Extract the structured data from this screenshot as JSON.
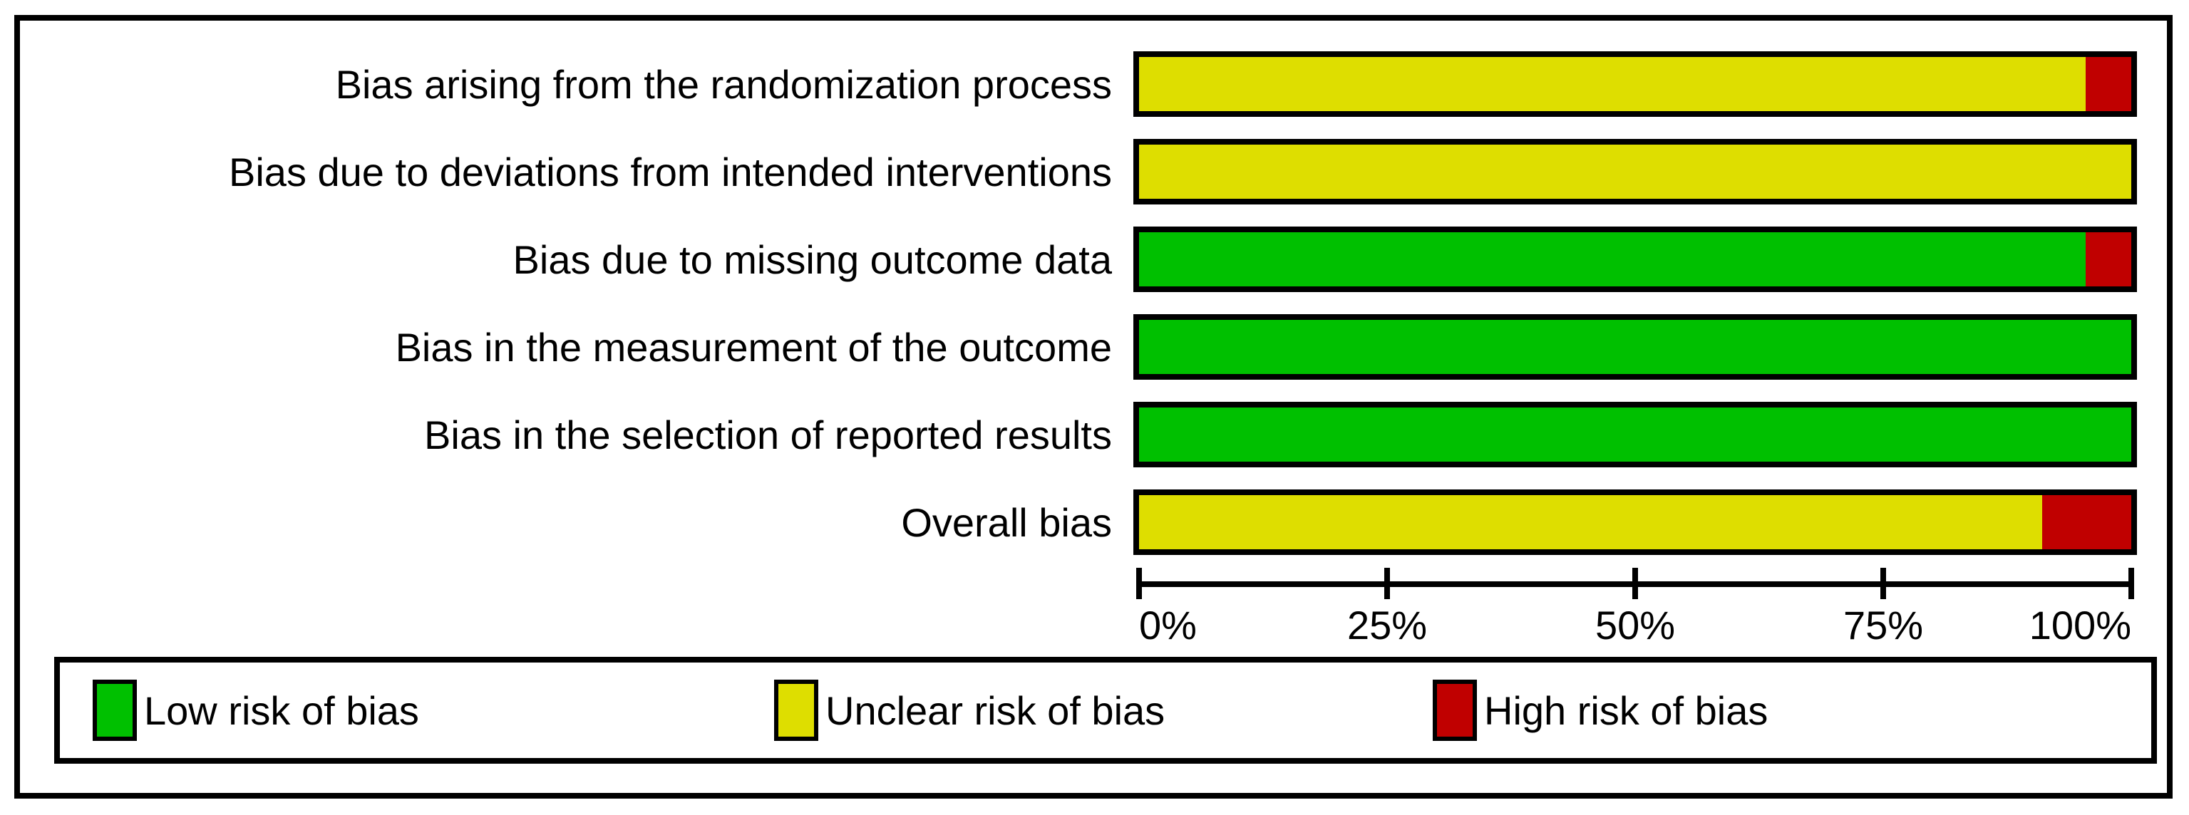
{
  "figure": {
    "background": "#ffffff",
    "border_color": "#000000"
  },
  "chart_data": {
    "type": "bar",
    "orientation": "horizontal",
    "stacked": true,
    "title": "",
    "xlabel": "",
    "ylabel": "",
    "grid": false,
    "categories": [
      "Bias arising from the randomization process",
      "Bias due to deviations from intended interventions",
      "Bias due to missing outcome data",
      "Bias in the measurement of the outcome",
      "Bias in the selection of reported results",
      "Overall bias"
    ],
    "series": [
      {
        "name": "Low risk of bias",
        "key": "low",
        "values_percent": [
          0,
          0,
          95.4,
          100,
          100,
          0
        ]
      },
      {
        "name": "Unclear risk of bias",
        "key": "unclear",
        "values_percent": [
          95.4,
          100,
          0,
          0,
          0,
          91
        ]
      },
      {
        "name": "High risk of bias",
        "key": "high",
        "values_percent": [
          4.6,
          0,
          4.6,
          0,
          0,
          9
        ]
      }
    ],
    "colors": {
      "low": "#00C000",
      "unclear": "#DEDE00",
      "high": "#C00000"
    },
    "x_axis": {
      "range_percent": [
        0,
        100
      ],
      "tick_labels": [
        "0%",
        "25%",
        "50%",
        "75%",
        "100%"
      ]
    },
    "legend": {
      "position": "bottom",
      "entries": [
        {
          "label": "Low risk of bias",
          "key": "low"
        },
        {
          "label": "Unclear risk of bias",
          "key": "unclear"
        },
        {
          "label": "High risk of bias",
          "key": "high"
        }
      ]
    }
  }
}
